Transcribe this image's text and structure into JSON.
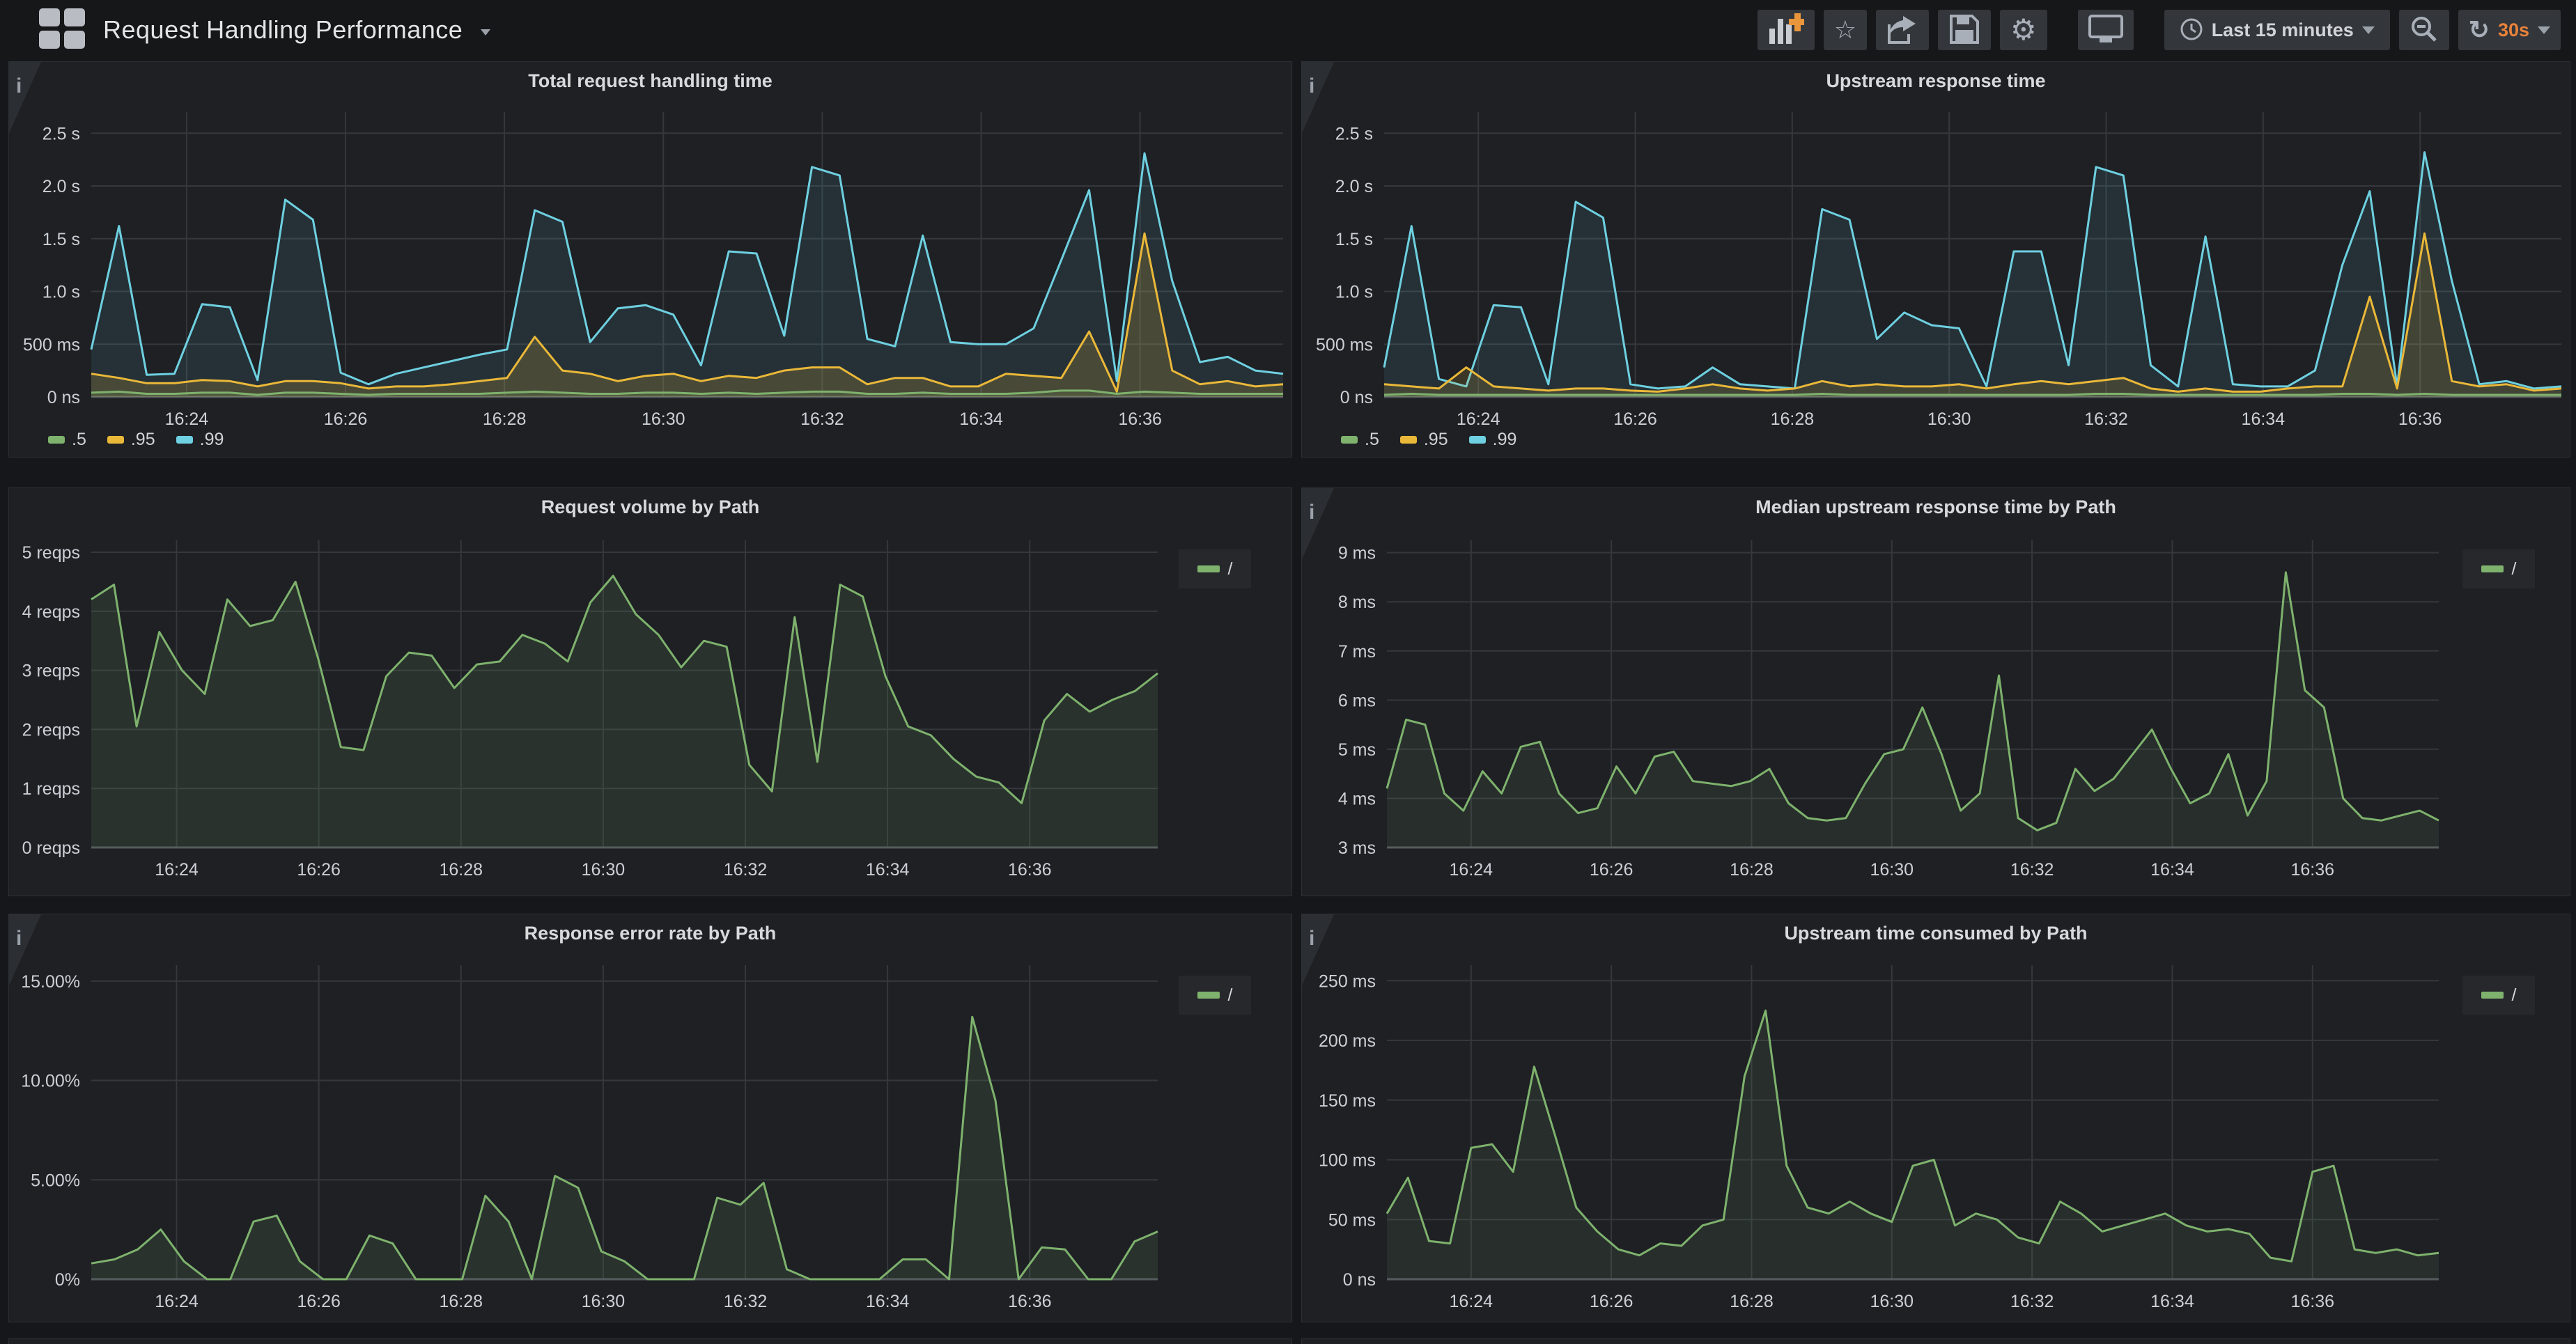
{
  "header": {
    "title": "Request Handling Performance",
    "time_range": "Last 15 minutes",
    "refresh_interval": "30s"
  },
  "icons": {
    "info": "i",
    "star": "☆",
    "gear": "⚙",
    "refresh": "↻"
  },
  "colors": {
    "green": "#7eb26d",
    "yellow": "#eab839",
    "blue": "#6ed0e0",
    "orange": "#e8823a",
    "panel_bg": "#1e2024",
    "page_bg": "#15171a"
  },
  "chart_data": [
    {
      "type": "area",
      "title": "Total request handling time",
      "xlabel": "",
      "ylabel": "",
      "x_ticks": [
        "16:24",
        "16:26",
        "16:28",
        "16:30",
        "16:32",
        "16:34",
        "16:36"
      ],
      "ylim": [
        0,
        2.7
      ],
      "y_ticks": [
        {
          "label": "0 ns",
          "v": 0
        },
        {
          "label": "500 ms",
          "v": 0.5
        },
        {
          "label": "1.0 s",
          "v": 1.0
        },
        {
          "label": "1.5 s",
          "v": 1.5
        },
        {
          "label": "2.0 s",
          "v": 2.0
        },
        {
          "label": "2.5 s",
          "v": 2.5
        }
      ],
      "legend_position": "bottom",
      "series": [
        {
          "name": ".5",
          "color": "#7eb26d",
          "fill": "rgba(126,178,109,0.12)",
          "values": [
            0.04,
            0.05,
            0.03,
            0.03,
            0.04,
            0.04,
            0.02,
            0.04,
            0.04,
            0.03,
            0.02,
            0.03,
            0.03,
            0.03,
            0.03,
            0.04,
            0.05,
            0.04,
            0.03,
            0.03,
            0.04,
            0.04,
            0.03,
            0.04,
            0.03,
            0.04,
            0.05,
            0.05,
            0.03,
            0.03,
            0.04,
            0.03,
            0.03,
            0.03,
            0.04,
            0.06,
            0.06,
            0.03,
            0.05,
            0.04,
            0.03,
            0.03,
            0.03,
            0.03
          ]
        },
        {
          "name": ".95",
          "color": "#eab839",
          "fill": "rgba(234,184,57,0.18)",
          "values": [
            0.22,
            0.18,
            0.13,
            0.13,
            0.16,
            0.15,
            0.1,
            0.15,
            0.15,
            0.13,
            0.08,
            0.1,
            0.1,
            0.12,
            0.15,
            0.18,
            0.57,
            0.25,
            0.22,
            0.15,
            0.2,
            0.22,
            0.15,
            0.2,
            0.18,
            0.25,
            0.28,
            0.28,
            0.12,
            0.18,
            0.18,
            0.1,
            0.1,
            0.22,
            0.2,
            0.18,
            0.62,
            0.05,
            1.55,
            0.25,
            0.12,
            0.15,
            0.1,
            0.12
          ]
        },
        {
          "name": ".99",
          "color": "#6ed0e0",
          "fill": "rgba(110,208,224,0.10)",
          "values": [
            0.45,
            1.62,
            0.21,
            0.22,
            0.88,
            0.85,
            0.16,
            1.87,
            1.68,
            0.23,
            0.12,
            0.22,
            0.28,
            0.34,
            0.4,
            0.45,
            1.77,
            1.66,
            0.52,
            0.84,
            0.87,
            0.78,
            0.3,
            1.38,
            1.36,
            0.58,
            2.18,
            2.1,
            0.55,
            0.48,
            1.53,
            0.52,
            0.5,
            0.5,
            0.65,
            1.3,
            1.96,
            0.15,
            2.31,
            1.1,
            0.33,
            0.38,
            0.25,
            0.22
          ]
        }
      ]
    },
    {
      "type": "area",
      "title": "Upstream response time",
      "xlabel": "",
      "ylabel": "",
      "x_ticks": [
        "16:24",
        "16:26",
        "16:28",
        "16:30",
        "16:32",
        "16:34",
        "16:36"
      ],
      "ylim": [
        0,
        2.7
      ],
      "y_ticks": [
        {
          "label": "0 ns",
          "v": 0
        },
        {
          "label": "500 ms",
          "v": 0.5
        },
        {
          "label": "1.0 s",
          "v": 1.0
        },
        {
          "label": "1.5 s",
          "v": 1.5
        },
        {
          "label": "2.0 s",
          "v": 2.0
        },
        {
          "label": "2.5 s",
          "v": 2.5
        }
      ],
      "legend_position": "bottom",
      "series": [
        {
          "name": ".5",
          "color": "#7eb26d",
          "fill": "rgba(126,178,109,0.12)",
          "values": [
            0.02,
            0.03,
            0.02,
            0.02,
            0.02,
            0.02,
            0.02,
            0.02,
            0.02,
            0.02,
            0.02,
            0.02,
            0.02,
            0.02,
            0.02,
            0.02,
            0.03,
            0.02,
            0.02,
            0.02,
            0.02,
            0.02,
            0.02,
            0.02,
            0.02,
            0.02,
            0.03,
            0.03,
            0.02,
            0.02,
            0.02,
            0.02,
            0.02,
            0.02,
            0.02,
            0.03,
            0.03,
            0.02,
            0.03,
            0.02,
            0.02,
            0.02,
            0.02,
            0.02
          ]
        },
        {
          "name": ".95",
          "color": "#eab839",
          "fill": "rgba(234,184,57,0.15)",
          "values": [
            0.12,
            0.1,
            0.08,
            0.28,
            0.1,
            0.08,
            0.06,
            0.08,
            0.08,
            0.06,
            0.05,
            0.08,
            0.12,
            0.08,
            0.06,
            0.08,
            0.15,
            0.1,
            0.12,
            0.1,
            0.1,
            0.12,
            0.08,
            0.12,
            0.15,
            0.12,
            0.15,
            0.18,
            0.08,
            0.05,
            0.08,
            0.05,
            0.05,
            0.08,
            0.1,
            0.1,
            0.95,
            0.08,
            1.55,
            0.15,
            0.1,
            0.12,
            0.06,
            0.08
          ]
        },
        {
          "name": ".99",
          "color": "#6ed0e0",
          "fill": "rgba(110,208,224,0.10)",
          "values": [
            0.28,
            1.62,
            0.17,
            0.1,
            0.87,
            0.85,
            0.12,
            1.85,
            1.7,
            0.12,
            0.08,
            0.1,
            0.28,
            0.12,
            0.1,
            0.08,
            1.78,
            1.68,
            0.55,
            0.8,
            0.68,
            0.65,
            0.1,
            1.38,
            1.38,
            0.3,
            2.18,
            2.1,
            0.3,
            0.1,
            1.52,
            0.12,
            0.1,
            0.1,
            0.25,
            1.25,
            1.95,
            0.1,
            2.32,
            1.1,
            0.12,
            0.15,
            0.08,
            0.1
          ]
        }
      ]
    },
    {
      "type": "area",
      "title": "Request volume by Path",
      "xlabel": "",
      "ylabel": "",
      "x_ticks": [
        "16:24",
        "16:26",
        "16:28",
        "16:30",
        "16:32",
        "16:34",
        "16:36"
      ],
      "ylim": [
        0,
        5.2
      ],
      "y_ticks": [
        {
          "label": "0 reqps",
          "v": 0
        },
        {
          "label": "1 reqps",
          "v": 1
        },
        {
          "label": "2 reqps",
          "v": 2
        },
        {
          "label": "3 reqps",
          "v": 3
        },
        {
          "label": "4 reqps",
          "v": 4
        },
        {
          "label": "5 reqps",
          "v": 5
        }
      ],
      "legend_position": "right-box",
      "series": [
        {
          "name": "/",
          "color": "#7eb26d",
          "fill": "rgba(126,178,109,0.12)",
          "values": [
            4.2,
            4.45,
            2.05,
            3.65,
            3.0,
            2.6,
            4.2,
            3.75,
            3.85,
            4.5,
            3.2,
            1.7,
            1.65,
            2.9,
            3.3,
            3.25,
            2.7,
            3.1,
            3.15,
            3.6,
            3.45,
            3.15,
            4.15,
            4.6,
            3.95,
            3.6,
            3.05,
            3.5,
            3.4,
            1.4,
            0.95,
            3.9,
            1.45,
            4.45,
            4.25,
            2.9,
            2.05,
            1.9,
            1.5,
            1.2,
            1.1,
            0.75,
            2.15,
            2.6,
            2.3,
            2.5,
            2.65,
            2.95
          ]
        }
      ]
    },
    {
      "type": "area",
      "title": "Median upstream response time by Path",
      "xlabel": "",
      "ylabel": "",
      "x_ticks": [
        "16:24",
        "16:26",
        "16:28",
        "16:30",
        "16:32",
        "16:34",
        "16:36"
      ],
      "ylim": [
        3,
        9.25
      ],
      "y_ticks": [
        {
          "label": "3 ms",
          "v": 3
        },
        {
          "label": "4 ms",
          "v": 4
        },
        {
          "label": "5 ms",
          "v": 5
        },
        {
          "label": "6 ms",
          "v": 6
        },
        {
          "label": "7 ms",
          "v": 7
        },
        {
          "label": "8 ms",
          "v": 8
        },
        {
          "label": "9 ms",
          "v": 9
        }
      ],
      "legend_position": "right-box",
      "series": [
        {
          "name": "/",
          "color": "#7eb26d",
          "fill": "rgba(126,178,109,0.10)",
          "values": [
            4.2,
            5.6,
            5.5,
            4.1,
            3.75,
            4.55,
            4.1,
            5.05,
            5.15,
            4.1,
            3.7,
            3.8,
            4.65,
            4.1,
            4.85,
            4.95,
            4.35,
            4.3,
            4.25,
            4.35,
            4.6,
            3.9,
            3.6,
            3.55,
            3.6,
            4.3,
            4.9,
            5.0,
            5.85,
            4.9,
            3.75,
            4.1,
            6.5,
            3.6,
            3.35,
            3.5,
            4.6,
            4.15,
            4.4,
            4.9,
            5.4,
            4.6,
            3.9,
            4.1,
            4.9,
            3.65,
            4.35,
            8.6,
            6.2,
            5.85,
            4.0,
            3.6,
            3.55,
            3.65,
            3.75,
            3.55
          ]
        }
      ]
    },
    {
      "type": "area",
      "title": "Response error rate by Path",
      "xlabel": "",
      "ylabel": "",
      "x_ticks": [
        "16:24",
        "16:26",
        "16:28",
        "16:30",
        "16:32",
        "16:34",
        "16:36"
      ],
      "ylim": [
        0,
        15.8
      ],
      "y_ticks": [
        {
          "label": "0%",
          "v": 0
        },
        {
          "label": "5.00%",
          "v": 5
        },
        {
          "label": "10.00%",
          "v": 10
        },
        {
          "label": "15.00%",
          "v": 15
        }
      ],
      "legend_position": "right-box",
      "series": [
        {
          "name": "/",
          "color": "#7eb26d",
          "fill": "rgba(126,178,109,0.12)",
          "values": [
            0.8,
            1.0,
            1.5,
            2.5,
            0.9,
            0,
            0,
            2.9,
            3.2,
            0.9,
            0,
            0,
            2.2,
            1.8,
            0,
            0,
            0,
            4.2,
            2.9,
            0,
            5.2,
            4.6,
            1.4,
            0.9,
            0,
            0,
            0,
            4.1,
            3.75,
            4.85,
            0.5,
            0,
            0,
            0,
            0,
            1.0,
            1.0,
            0,
            13.2,
            9.0,
            0,
            1.6,
            1.5,
            0,
            0,
            1.9,
            2.4
          ]
        }
      ]
    },
    {
      "type": "area",
      "title": "Upstream time consumed by Path",
      "xlabel": "",
      "ylabel": "",
      "x_ticks": [
        "16:24",
        "16:26",
        "16:28",
        "16:30",
        "16:32",
        "16:34",
        "16:36"
      ],
      "ylim": [
        0,
        263
      ],
      "y_ticks": [
        {
          "label": "0 ns",
          "v": 0
        },
        {
          "label": "50 ms",
          "v": 50
        },
        {
          "label": "100 ms",
          "v": 100
        },
        {
          "label": "150 ms",
          "v": 150
        },
        {
          "label": "200 ms",
          "v": 200
        },
        {
          "label": "250 ms",
          "v": 250
        }
      ],
      "legend_position": "right-box",
      "series": [
        {
          "name": "/",
          "color": "#7eb26d",
          "fill": "rgba(126,178,109,0.10)",
          "values": [
            55,
            85,
            32,
            30,
            110,
            113,
            90,
            178,
            120,
            60,
            40,
            25,
            20,
            30,
            28,
            45,
            50,
            170,
            225,
            95,
            60,
            55,
            65,
            55,
            48,
            95,
            100,
            45,
            55,
            50,
            35,
            30,
            65,
            55,
            40,
            45,
            50,
            55,
            45,
            40,
            42,
            38,
            18,
            15,
            90,
            95,
            25,
            22,
            25,
            20,
            22
          ]
        }
      ]
    }
  ]
}
